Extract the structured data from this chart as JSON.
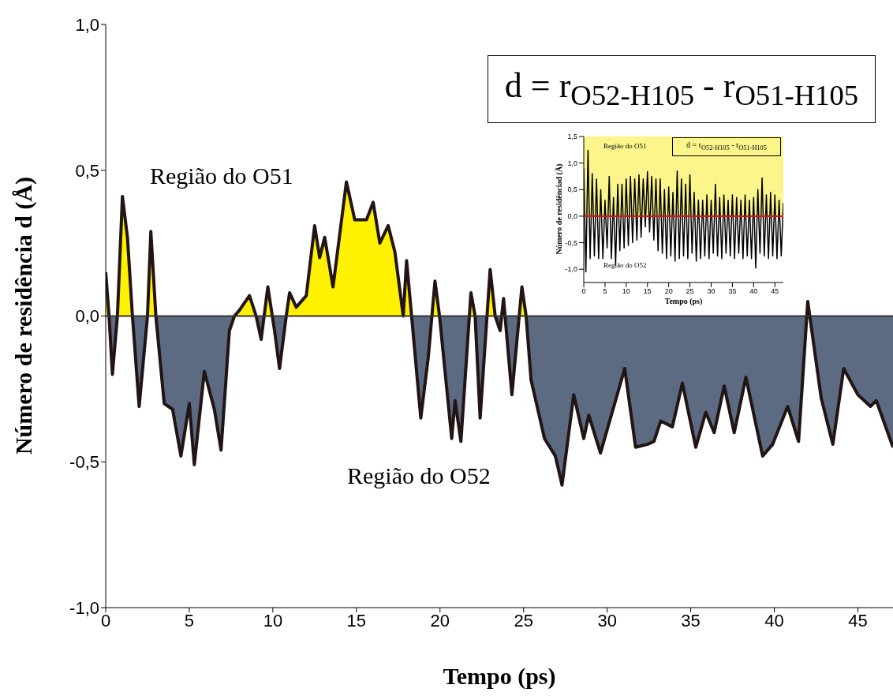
{
  "chart_data": [
    {
      "type": "area",
      "xlabel": "Tempo (ps)",
      "ylabel": "Número de residência d (Å)",
      "xlim": [
        0,
        47.1
      ],
      "ylim": [
        -1.0,
        1.0
      ],
      "xticks": [
        0,
        5,
        10,
        15,
        20,
        25,
        30,
        35,
        40,
        45
      ],
      "yticks": [
        {
          "value": -1.0,
          "label": "-1,0"
        },
        {
          "value": -0.5,
          "label": "-0,5"
        },
        {
          "value": 0,
          "label": "0,0"
        },
        {
          "value": 0.5,
          "label": "0,5"
        },
        {
          "value": 1.0,
          "label": "1,0"
        }
      ],
      "annotations": [
        "d = r$_{O52-H105}$ - r$_{O51-H105}$",
        "Região do O51",
        "Região do O52"
      ],
      "ref_lines": [
        {
          "axis": "y",
          "value": 0,
          "color": "#333333"
        }
      ],
      "series": [
        {
          "color": "#231414",
          "x": [
            0,
            0.2,
            0.4,
            0.7,
            1.0,
            1.3,
            1.6,
            2.0,
            2.5,
            2.7,
            3.0,
            3.5,
            4.0,
            4.5,
            5.0,
            5.3,
            5.9,
            6.5,
            6.9,
            7.4,
            7.7,
            8.0,
            8.6,
            9.0,
            9.3,
            9.7,
            10.1,
            10.4,
            10.8,
            11.0,
            11.4,
            12.0,
            12.5,
            12.8,
            13.1,
            13.6,
            14.4,
            14.9,
            15.6,
            16.0,
            16.4,
            16.9,
            17.3,
            17.8,
            18.0,
            18.3,
            18.85,
            19.3,
            19.7,
            19.97,
            20.7,
            20.9,
            21.25,
            21.85,
            22.1,
            22.4,
            23.0,
            23.3,
            23.6,
            23.8,
            24.3,
            24.9,
            25.15,
            25.45,
            26.25,
            26.9,
            27.3,
            28.0,
            28.6,
            28.9,
            29.6,
            30.35,
            31.05,
            31.7,
            32.4,
            32.8,
            33.2,
            33.9,
            34.5,
            35.3,
            35.9,
            36.4,
            37.0,
            37.6,
            38.3,
            39.3,
            39.9,
            40.8,
            41.45,
            42.0,
            42.8,
            43.5,
            44.15,
            45.0,
            45.75,
            46.1,
            47.1
          ],
          "values": [
            0.15,
            0,
            -0.2,
            0,
            0.41,
            0.27,
            0,
            -0.31,
            0,
            0.29,
            0,
            -0.3,
            -0.32,
            -0.48,
            -0.3,
            -0.51,
            -0.19,
            -0.32,
            -0.46,
            -0.05,
            0,
            0.02,
            0.07,
            0,
            -0.08,
            0.1,
            -0.05,
            -0.18,
            0,
            0.08,
            0.03,
            0.07,
            0.31,
            0.2,
            0.27,
            0.1,
            0.46,
            0.33,
            0.33,
            0.39,
            0.25,
            0.31,
            0.22,
            0,
            0.19,
            0,
            -0.35,
            -0.14,
            0.12,
            0,
            -0.42,
            -0.29,
            -0.43,
            0.08,
            0,
            -0.35,
            0.16,
            0,
            -0.05,
            0.06,
            -0.27,
            0.1,
            0,
            -0.22,
            -0.42,
            -0.48,
            -0.58,
            -0.27,
            -0.42,
            -0.34,
            -0.47,
            -0.32,
            -0.18,
            -0.45,
            -0.44,
            -0.43,
            -0.36,
            -0.38,
            -0.23,
            -0.45,
            -0.33,
            -0.4,
            -0.24,
            -0.4,
            -0.21,
            -0.48,
            -0.44,
            -0.31,
            -0.43,
            0.05,
            -0.28,
            -0.44,
            -0.18,
            -0.27,
            -0.31,
            -0.29,
            -0.45
          ]
        }
      ]
    },
    {
      "type": "line",
      "xlabel": "Tempo (ps)",
      "ylabel": "Número de residênciad (Å)",
      "xlim": [
        0,
        47
      ],
      "ylim": [
        -1.25,
        1.5
      ],
      "xticks": [
        0,
        5,
        10,
        15,
        20,
        25,
        30,
        35,
        40,
        45
      ],
      "yticks": [
        {
          "value": -1.0,
          "label": "-1,0"
        },
        {
          "value": -0.5,
          "label": "-0,5"
        },
        {
          "value": 0,
          "label": "0,0"
        },
        {
          "value": 0.5,
          "label": "0,5"
        },
        {
          "value": 1.0,
          "label": "1,0"
        },
        {
          "value": 1.5,
          "label": "1,5"
        }
      ],
      "annotations": [
        "d = r$_{O52-H105}$ - r$_{O51-H105}$",
        "Região do O51",
        "Região do O52"
      ],
      "bands": [
        {
          "axis": "y",
          "from": 0,
          "to": 1.5,
          "color": "#fbf58c"
        }
      ],
      "ref_lines": [
        {
          "axis": "y",
          "value": 0,
          "color": "#e01010"
        }
      ],
      "series": [
        {
          "color": "#000000",
          "x": [
            0,
            0.5,
            1,
            1.5,
            2,
            2.5,
            3,
            3.5,
            4,
            4.5,
            5,
            5.5,
            6,
            6.5,
            7,
            7.5,
            8,
            8.5,
            9,
            9.5,
            10,
            10.5,
            11,
            11.5,
            12,
            12.5,
            13,
            13.5,
            14,
            14.5,
            15,
            15.5,
            16,
            16.5,
            17,
            17.5,
            18,
            18.5,
            19,
            19.5,
            20,
            20.5,
            21,
            21.5,
            22,
            22.5,
            23,
            23.5,
            24,
            24.5,
            25,
            25.5,
            26,
            26.5,
            27,
            27.5,
            28,
            28.5,
            29,
            29.5,
            30,
            30.5,
            31,
            31.5,
            32,
            32.5,
            33,
            33.5,
            34,
            34.5,
            35,
            35.5,
            36,
            36.5,
            37,
            37.5,
            38,
            38.5,
            39,
            39.5,
            40,
            40.5,
            41,
            41.5,
            42,
            42.5,
            43,
            43.5,
            44,
            44.5,
            45,
            45.5,
            46,
            46.5,
            47
          ],
          "values": [
            0.9,
            -1.05,
            1.24,
            -0.8,
            0.8,
            -0.75,
            0.7,
            -0.8,
            0.5,
            -0.8,
            0.3,
            -0.6,
            0.75,
            -0.8,
            0.35,
            -0.92,
            0.6,
            -0.65,
            0.6,
            -0.6,
            0.7,
            -0.55,
            0.75,
            -0.5,
            0.7,
            -0.45,
            0.78,
            -0.4,
            0.7,
            -0.2,
            0.84,
            -0.3,
            0.75,
            -0.45,
            0.7,
            -0.65,
            0.7,
            -0.7,
            0.5,
            -0.8,
            0.55,
            -0.75,
            0.45,
            -0.85,
            0.85,
            -0.8,
            0.7,
            -0.75,
            0.6,
            -0.8,
            0.78,
            -0.7,
            0.45,
            -0.85,
            0.3,
            -0.8,
            0.3,
            -0.75,
            0.4,
            -0.8,
            0.3,
            -0.7,
            0.6,
            -0.75,
            0.35,
            -0.8,
            0.4,
            -0.7,
            0.3,
            -0.75,
            0.4,
            -0.8,
            0.35,
            -0.7,
            0.3,
            -0.8,
            0.4,
            -0.75,
            0.3,
            -0.8,
            0.35,
            -0.98,
            0.5,
            -0.7,
            0.72,
            -0.75,
            0.4,
            -0.8,
            0.45,
            -0.75,
            0.4,
            -0.8,
            0.3,
            -0.75,
            0.25
          ]
        }
      ]
    }
  ]
}
